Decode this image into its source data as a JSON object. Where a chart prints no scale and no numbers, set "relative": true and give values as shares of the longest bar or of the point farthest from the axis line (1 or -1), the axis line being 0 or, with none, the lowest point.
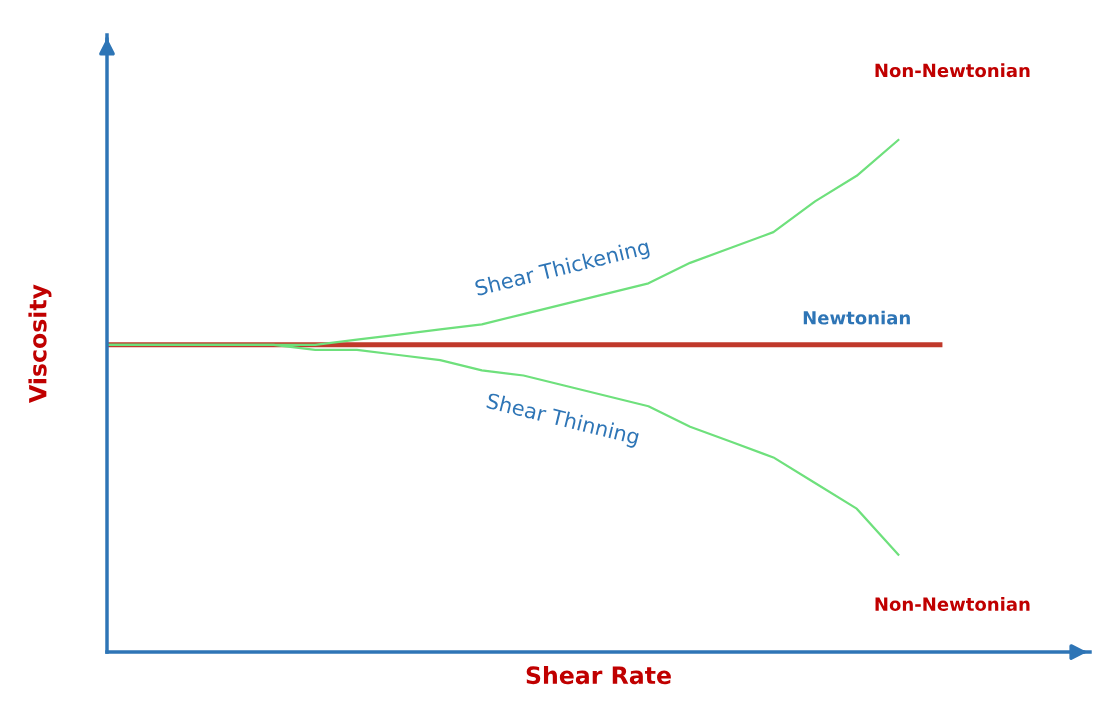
{
  "chart_data": {
    "type": "line",
    "relative": true,
    "xlabel": "Shear Rate",
    "ylabel": "Viscosity",
    "tick_labels": false,
    "grid": false,
    "legend": false,
    "marker": "none",
    "line_style": "solid",
    "categories": [
      null,
      null,
      null,
      null,
      null,
      null,
      null,
      null,
      null,
      null,
      null,
      null,
      null,
      null,
      null,
      null,
      null,
      null,
      null,
      null,
      null
    ],
    "series": [
      {
        "name": "Shear Thickening",
        "color": "#6ee07c",
        "values": [
          0.6,
          0.6,
          0.6,
          0.6,
          0.6,
          0.6,
          0.61,
          0.62,
          0.63,
          0.64,
          0.66,
          0.68,
          0.7,
          0.72,
          0.76,
          0.79,
          0.82,
          0.88,
          0.93,
          1.0,
          null
        ]
      },
      {
        "name": "Newtonian",
        "color": "#c0392b",
        "values": [
          0.6,
          0.6,
          0.6,
          0.6,
          0.6,
          0.6,
          0.6,
          0.6,
          0.6,
          0.6,
          0.6,
          0.6,
          0.6,
          0.6,
          0.6,
          0.6,
          0.6,
          0.6,
          0.6,
          0.6,
          0.6
        ]
      },
      {
        "name": "Shear Thinning",
        "color": "#6ee07c",
        "values": [
          0.6,
          0.6,
          0.6,
          0.6,
          0.6,
          0.59,
          0.59,
          0.58,
          0.57,
          0.55,
          0.54,
          0.52,
          0.5,
          0.48,
          0.44,
          0.41,
          0.38,
          0.33,
          0.28,
          0.19,
          null
        ]
      }
    ],
    "annotations": [
      "Non-Newtonian",
      "Non-Newtonian"
    ]
  }
}
